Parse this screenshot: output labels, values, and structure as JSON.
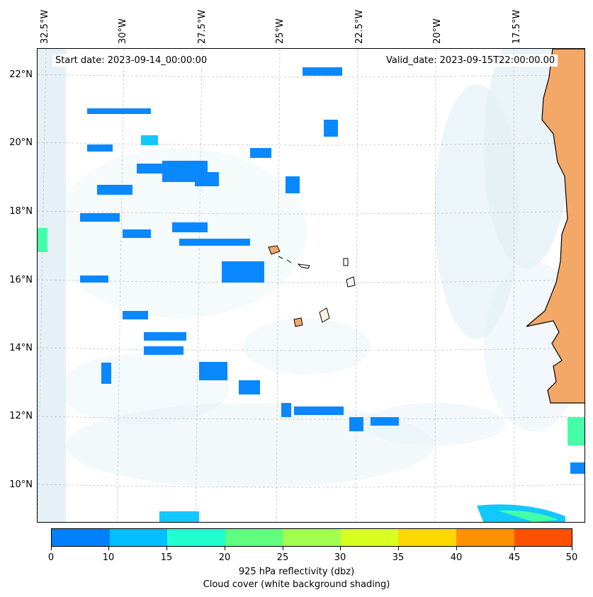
{
  "map": {
    "start_date_text": "Start date: 2023-09-14_00:00:00",
    "valid_date_text": "Valid_date: 2023-09-15T22:00:00.00",
    "lon_labels": [
      "32.5°W",
      "30°W",
      "27.5°W",
      "25°W",
      "22.5°W",
      "20°W",
      "17.5°W"
    ],
    "lat_labels": [
      "22°N",
      "20°N",
      "18°N",
      "16°N",
      "14°N",
      "12°N",
      "10°N"
    ]
  },
  "colorbar": {
    "ticks": [
      "0",
      "10",
      "15",
      "20",
      "25",
      "30",
      "35",
      "40",
      "45",
      "50"
    ],
    "colors": [
      "#0080ff",
      "#00c0ff",
      "#20ffd0",
      "#60ff80",
      "#a0ff50",
      "#d8ff20",
      "#ffd800",
      "#ff9000",
      "#ff5000"
    ],
    "title": "925 hPa reflectivity (dbz)",
    "subtitle": "Cloud cover (white background shading)"
  },
  "palette": {
    "cloud": "#cfe6ef",
    "echo_low": "#0a88ff",
    "echo_mid": "#12c8ff",
    "echo_high": "#45ffa8",
    "land": "#f4a868"
  }
}
